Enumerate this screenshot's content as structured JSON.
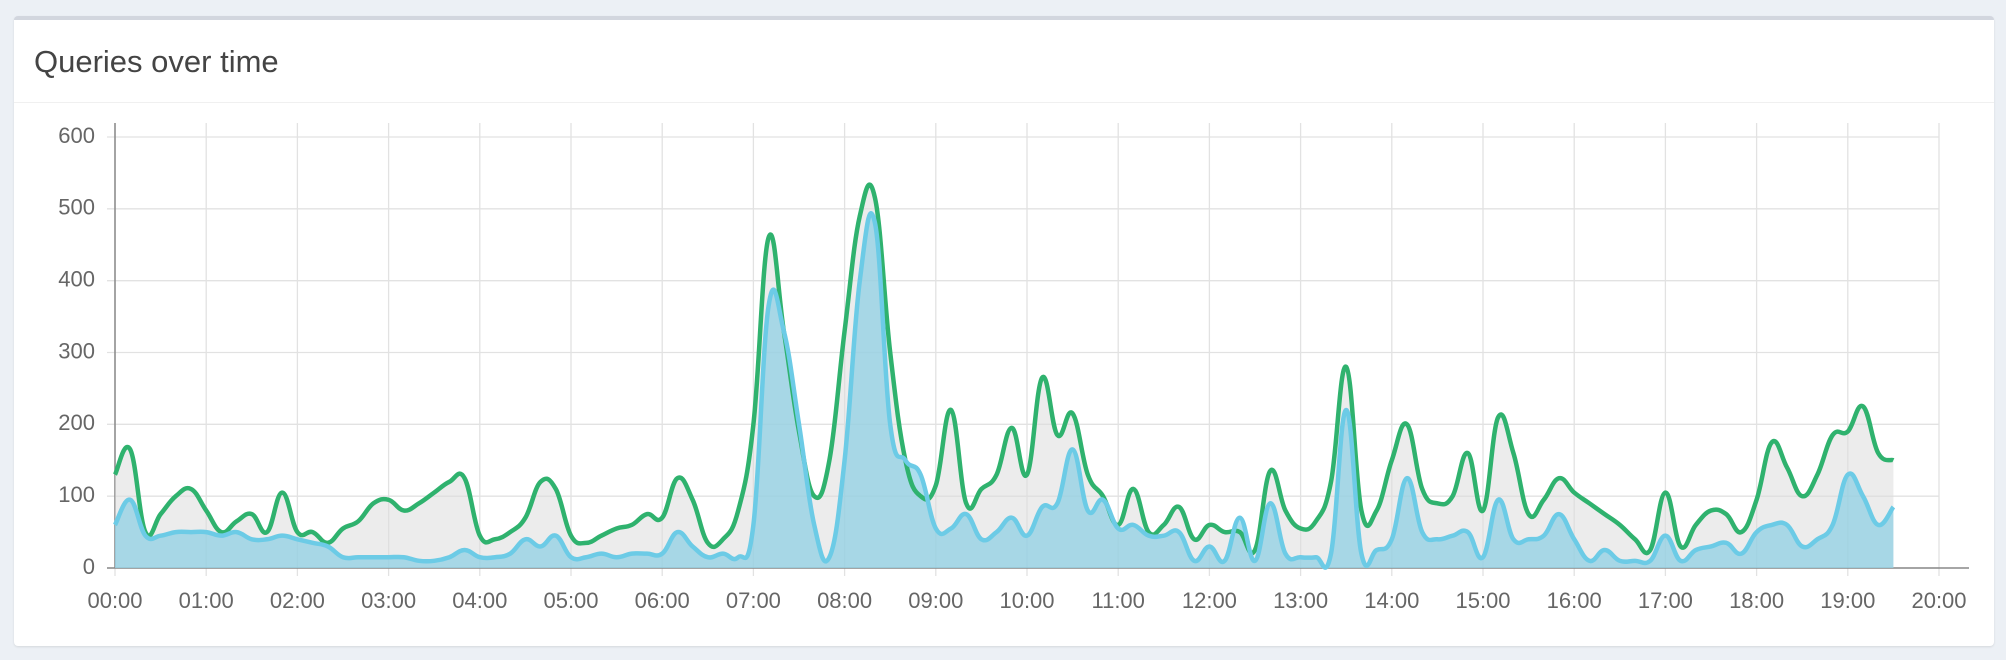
{
  "chart_data": {
    "type": "area",
    "title": "Queries over time",
    "x": [
      "00:00",
      "00:10",
      "00:20",
      "00:30",
      "00:40",
      "00:50",
      "01:00",
      "01:10",
      "01:20",
      "01:30",
      "01:40",
      "01:50",
      "02:00",
      "02:10",
      "02:20",
      "02:30",
      "02:40",
      "02:50",
      "03:00",
      "03:10",
      "03:20",
      "03:30",
      "03:40",
      "03:50",
      "04:00",
      "04:10",
      "04:20",
      "04:30",
      "04:40",
      "04:50",
      "05:00",
      "05:10",
      "05:20",
      "05:30",
      "05:40",
      "05:50",
      "06:00",
      "06:10",
      "06:20",
      "06:30",
      "06:40",
      "06:50",
      "07:00",
      "07:10",
      "07:20",
      "07:30",
      "07:40",
      "07:50",
      "08:00",
      "08:10",
      "08:20",
      "08:30",
      "08:40",
      "08:50",
      "09:00",
      "09:10",
      "09:20",
      "09:30",
      "09:40",
      "09:50",
      "10:00",
      "10:10",
      "10:20",
      "10:30",
      "10:40",
      "10:50",
      "11:00",
      "11:10",
      "11:20",
      "11:30",
      "11:40",
      "11:50",
      "12:00",
      "12:10",
      "12:20",
      "12:30",
      "12:40",
      "12:50",
      "13:00",
      "13:10",
      "13:20",
      "13:30",
      "13:40",
      "13:50",
      "14:00",
      "14:10",
      "14:20",
      "14:30",
      "14:40",
      "14:50",
      "15:00",
      "15:10",
      "15:20",
      "15:30",
      "15:40",
      "15:50",
      "16:00",
      "16:10",
      "16:20",
      "16:30",
      "16:40",
      "16:50",
      "17:00",
      "17:10",
      "17:20",
      "17:30",
      "17:40",
      "17:50",
      "18:00",
      "18:10",
      "18:20",
      "18:30",
      "18:40",
      "18:50",
      "19:00",
      "19:10",
      "19:20",
      "19:30"
    ],
    "series": [
      {
        "color": "#2fb26e",
        "fill": "rgba(220,220,220,0.55)",
        "values": [
          130,
          165,
          50,
          75,
          100,
          110,
          80,
          50,
          65,
          75,
          50,
          105,
          50,
          50,
          35,
          55,
          65,
          90,
          95,
          80,
          90,
          105,
          120,
          125,
          45,
          40,
          50,
          70,
          120,
          110,
          45,
          35,
          45,
          55,
          60,
          75,
          70,
          125,
          95,
          35,
          40,
          80,
          200,
          460,
          330,
          190,
          100,
          150,
          330,
          490,
          515,
          300,
          150,
          100,
          115,
          220,
          90,
          110,
          130,
          195,
          130,
          265,
          185,
          215,
          130,
          100,
          60,
          110,
          50,
          60,
          85,
          40,
          60,
          50,
          50,
          25,
          135,
          80,
          55,
          65,
          120,
          280,
          80,
          80,
          150,
          200,
          110,
          90,
          100,
          160,
          80,
          210,
          160,
          75,
          95,
          125,
          105,
          90,
          75,
          60,
          40,
          25,
          105,
          30,
          60,
          80,
          75,
          50,
          95,
          175,
          140,
          100,
          130,
          185,
          190,
          225,
          160,
          150
        ]
      },
      {
        "color": "#6ccbe6",
        "fill": "rgba(130,205,228,0.65)",
        "values": [
          60,
          95,
          45,
          45,
          50,
          50,
          50,
          45,
          50,
          40,
          40,
          45,
          40,
          35,
          30,
          15,
          15,
          15,
          15,
          15,
          10,
          10,
          15,
          25,
          15,
          15,
          20,
          40,
          30,
          45,
          15,
          15,
          20,
          15,
          20,
          20,
          20,
          50,
          30,
          15,
          20,
          15,
          60,
          365,
          330,
          200,
          60,
          15,
          150,
          400,
          480,
          200,
          150,
          130,
          55,
          55,
          75,
          40,
          50,
          70,
          45,
          85,
          90,
          165,
          80,
          95,
          55,
          60,
          45,
          45,
          50,
          10,
          30,
          10,
          70,
          10,
          90,
          20,
          15,
          15,
          20,
          220,
          20,
          25,
          40,
          125,
          50,
          40,
          45,
          50,
          15,
          95,
          40,
          40,
          45,
          75,
          40,
          10,
          25,
          10,
          10,
          10,
          45,
          10,
          25,
          30,
          35,
          20,
          50,
          60,
          60,
          30,
          40,
          60,
          130,
          100,
          60,
          85
        ]
      }
    ],
    "xlim": [
      "00:00",
      "20:00"
    ],
    "xticks": [
      "00:00",
      "01:00",
      "02:00",
      "03:00",
      "04:00",
      "05:00",
      "06:00",
      "07:00",
      "08:00",
      "09:00",
      "10:00",
      "11:00",
      "12:00",
      "13:00",
      "14:00",
      "15:00",
      "16:00",
      "17:00",
      "18:00",
      "19:00",
      "20:00"
    ],
    "ylim": [
      0,
      600
    ],
    "yticks": [
      0,
      100,
      200,
      300,
      400,
      500,
      600
    ],
    "grid": true
  }
}
